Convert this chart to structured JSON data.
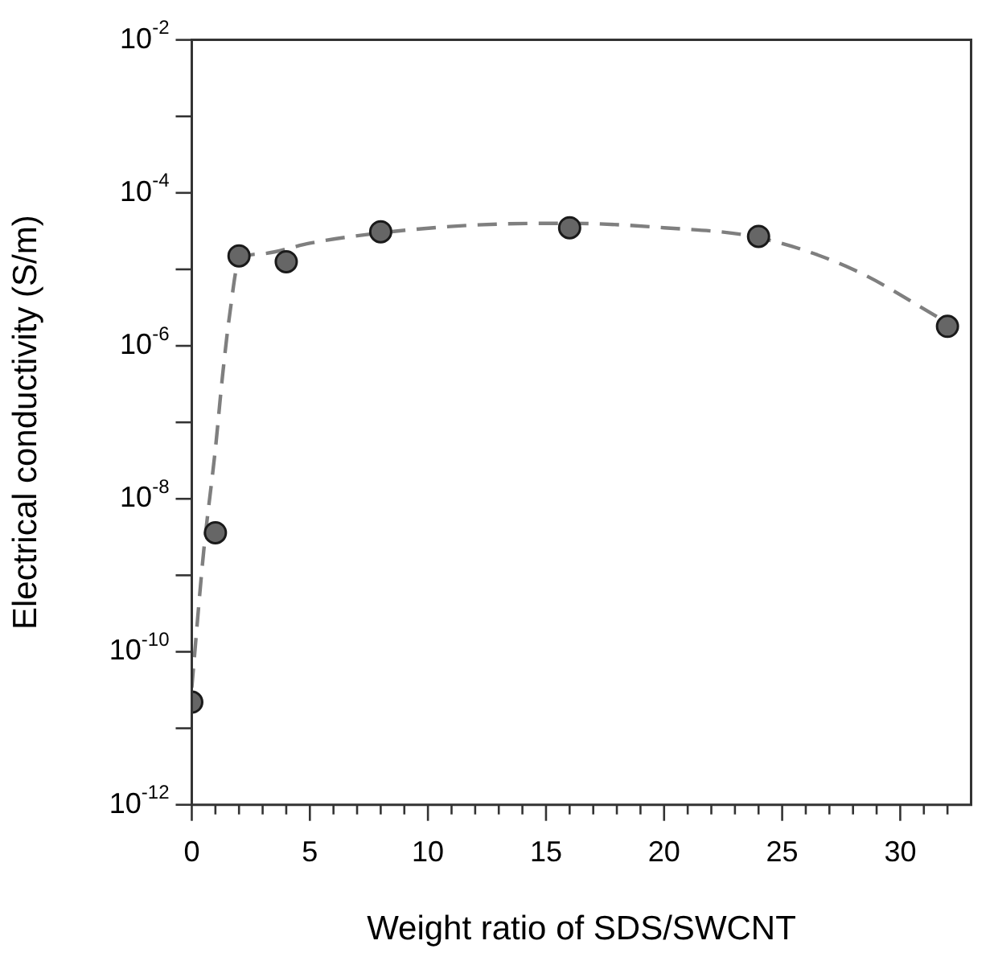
{
  "chart_data": {
    "type": "scatter",
    "xlabel": "Weight ratio of SDS/SWCNT",
    "ylabel": "Electrical conductivity (S/m)",
    "log": "y",
    "xlim": [
      0,
      33
    ],
    "ylim": [
      1e-12,
      0.01
    ],
    "xticks": [
      0,
      {
        "value": 1,
        "label": null
      },
      {
        "value": 2,
        "label": null
      },
      {
        "value": 3,
        "label": null
      },
      {
        "value": 4,
        "label": null
      },
      5,
      {
        "value": 6,
        "label": null
      },
      {
        "value": 7,
        "label": null
      },
      {
        "value": 8,
        "label": null
      },
      {
        "value": 9,
        "label": null
      },
      10,
      {
        "value": 11,
        "label": null
      },
      {
        "value": 12,
        "label": null
      },
      {
        "value": 13,
        "label": null
      },
      {
        "value": 14,
        "label": null
      },
      15,
      {
        "value": 16,
        "label": null
      },
      {
        "value": 17,
        "label": null
      },
      {
        "value": 18,
        "label": null
      },
      {
        "value": 19,
        "label": null
      },
      20,
      {
        "value": 21,
        "label": null
      },
      {
        "value": 22,
        "label": null
      },
      {
        "value": 23,
        "label": null
      },
      {
        "value": 24,
        "label": null
      },
      25,
      {
        "value": 26,
        "label": null
      },
      {
        "value": 27,
        "label": null
      },
      {
        "value": 28,
        "label": null
      },
      {
        "value": 29,
        "label": null
      },
      30,
      {
        "value": 31,
        "label": null
      },
      {
        "value": 32,
        "label": null
      }
    ],
    "yticks": [
      {
        "value": 1e-12,
        "label": "10$^{-12}$"
      },
      {
        "value": 1e-11,
        "label": null
      },
      {
        "value": 1e-10,
        "label": "10$^{-10}$"
      },
      {
        "value": 1e-09,
        "label": null
      },
      {
        "value": 1e-08,
        "label": "10$^{-8}$"
      },
      {
        "value": 1e-07,
        "label": null
      },
      {
        "value": 1e-06,
        "label": "10$^{-6}$"
      },
      {
        "value": 1e-05,
        "label": null
      },
      {
        "value": 0.0001,
        "label": "10$^{-4}$"
      },
      {
        "value": 0.001,
        "label": null
      },
      {
        "value": 0.01,
        "label": "10$^{-2}$"
      }
    ],
    "grid": false,
    "legend": false,
    "series": [
      {
        "type": "line",
        "line_style": "dashed",
        "marker": "none",
        "color": "#7f7f7f",
        "x": [
          0,
          0.5,
          1,
          1.3,
          1.6,
          2,
          3,
          5,
          8,
          12,
          16,
          20,
          24,
          28,
          32
        ],
        "values": [
          3.4e-11,
          2e-09,
          4.5e-08,
          4e-07,
          2.5e-06,
          1.3e-05,
          1.6e-05,
          2.2e-05,
          3e-05,
          3.8e-05,
          4e-05,
          3.5e-05,
          2.6e-05,
          1e-05,
          2e-06
        ]
      },
      {
        "marker": "circle",
        "color": "#666666",
        "x": [
          0,
          1,
          2,
          4,
          8,
          16,
          24,
          32
        ],
        "values": [
          2.2e-11,
          3.6e-09,
          1.5e-05,
          1.26e-05,
          3.1e-05,
          3.5e-05,
          2.7e-05,
          1.8e-06
        ]
      }
    ]
  }
}
